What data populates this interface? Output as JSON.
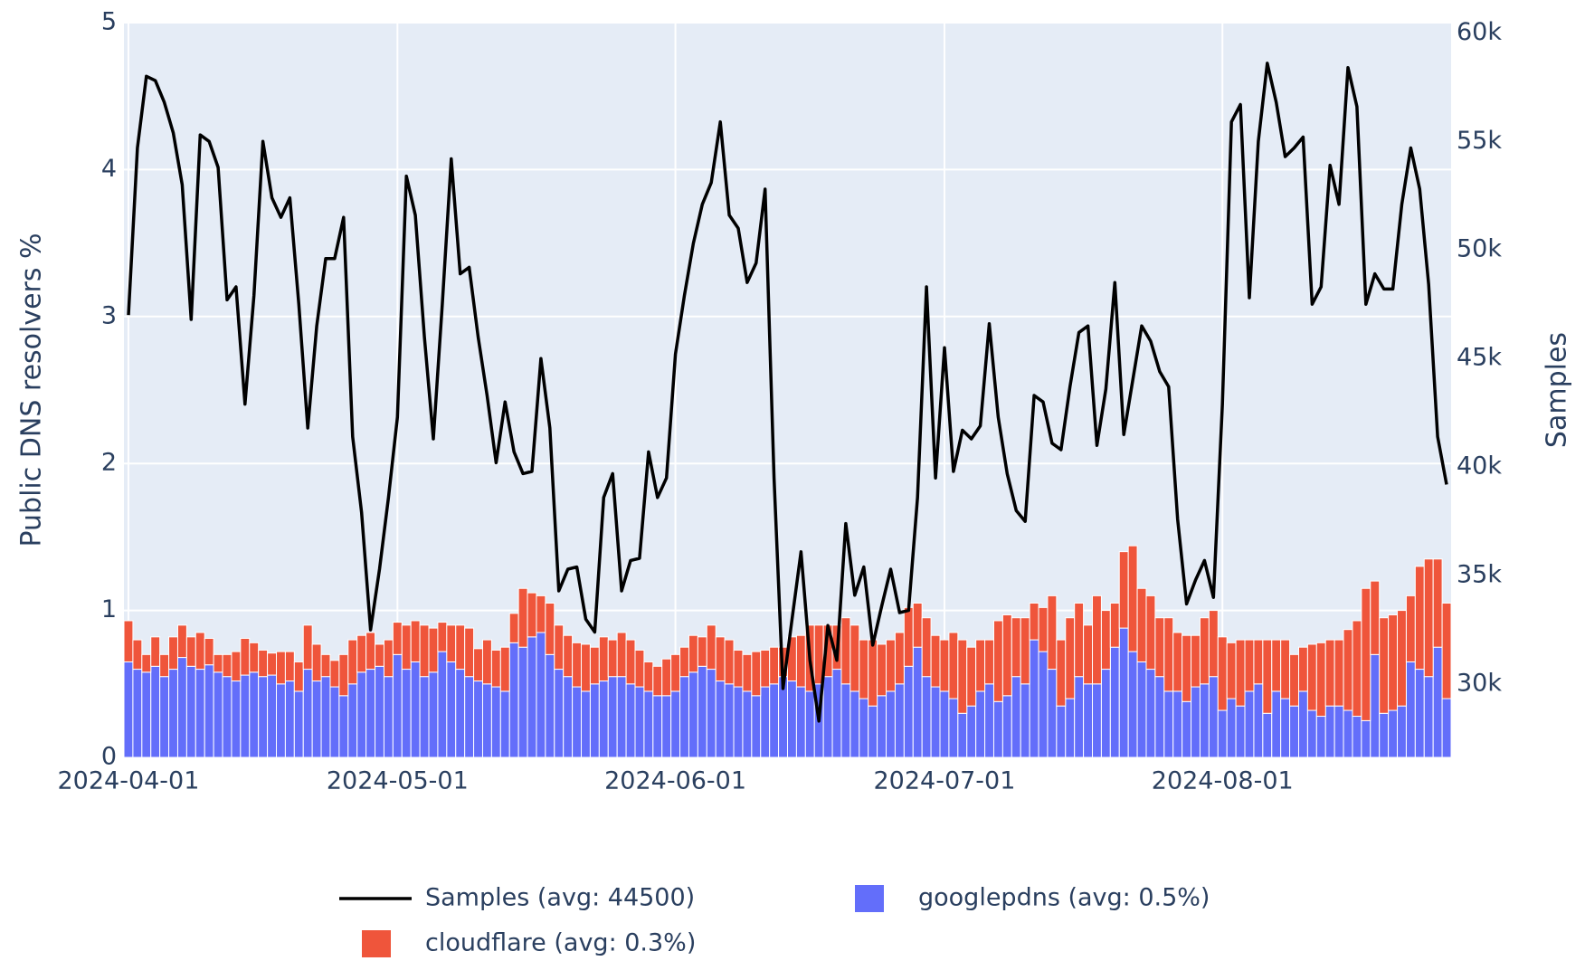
{
  "chart_data": {
    "type": "bar",
    "barmode": "stack",
    "y_label": "Public DNS resolvers %",
    "y2_label": "Samples",
    "legend": "bottom",
    "grid": true,
    "xlim": [
      "2024-03-31T12:00:00Z",
      "2024-08-26T12:00:00Z"
    ],
    "xticks": [
      "2024-04-01",
      "2024-05-01",
      "2024-06-01",
      "2024-07-01",
      "2024-08-01"
    ],
    "ylim": [
      0,
      5
    ],
    "yticks": [
      0,
      1,
      2,
      3,
      4,
      5
    ],
    "y2lim": [
      26630,
      60470
    ],
    "y2ticks": [
      {
        "value": 30000,
        "label": "30k"
      },
      {
        "value": 35000,
        "label": "35k"
      },
      {
        "value": 40000,
        "label": "40k"
      },
      {
        "value": 45000,
        "label": "45k"
      },
      {
        "value": 50000,
        "label": "50k"
      },
      {
        "value": 55000,
        "label": "55k"
      },
      {
        "value": 60000,
        "label": "60k"
      }
    ],
    "x": [
      "2024-04-01",
      "2024-04-02",
      "2024-04-03",
      "2024-04-04",
      "2024-04-05",
      "2024-04-06",
      "2024-04-07",
      "2024-04-08",
      "2024-04-09",
      "2024-04-10",
      "2024-04-11",
      "2024-04-12",
      "2024-04-13",
      "2024-04-14",
      "2024-04-15",
      "2024-04-16",
      "2024-04-17",
      "2024-04-18",
      "2024-04-19",
      "2024-04-20",
      "2024-04-21",
      "2024-04-22",
      "2024-04-23",
      "2024-04-24",
      "2024-04-25",
      "2024-04-26",
      "2024-04-27",
      "2024-04-28",
      "2024-04-29",
      "2024-04-30",
      "2024-05-01",
      "2024-05-02",
      "2024-05-03",
      "2024-05-04",
      "2024-05-05",
      "2024-05-06",
      "2024-05-07",
      "2024-05-08",
      "2024-05-09",
      "2024-05-10",
      "2024-05-11",
      "2024-05-12",
      "2024-05-13",
      "2024-05-14",
      "2024-05-15",
      "2024-05-16",
      "2024-05-17",
      "2024-05-18",
      "2024-05-19",
      "2024-05-20",
      "2024-05-21",
      "2024-05-22",
      "2024-05-23",
      "2024-05-24",
      "2024-05-25",
      "2024-05-26",
      "2024-05-27",
      "2024-05-28",
      "2024-05-29",
      "2024-05-30",
      "2024-05-31",
      "2024-06-01",
      "2024-06-02",
      "2024-06-03",
      "2024-06-04",
      "2024-06-05",
      "2024-06-06",
      "2024-06-07",
      "2024-06-08",
      "2024-06-09",
      "2024-06-10",
      "2024-06-11",
      "2024-06-12",
      "2024-06-13",
      "2024-06-14",
      "2024-06-15",
      "2024-06-16",
      "2024-06-17",
      "2024-06-18",
      "2024-06-19",
      "2024-06-20",
      "2024-06-21",
      "2024-06-22",
      "2024-06-23",
      "2024-06-24",
      "2024-06-25",
      "2024-06-26",
      "2024-06-27",
      "2024-06-28",
      "2024-06-29",
      "2024-06-30",
      "2024-07-01",
      "2024-07-02",
      "2024-07-03",
      "2024-07-04",
      "2024-07-05",
      "2024-07-06",
      "2024-07-07",
      "2024-07-08",
      "2024-07-09",
      "2024-07-10",
      "2024-07-11",
      "2024-07-12",
      "2024-07-13",
      "2024-07-14",
      "2024-07-15",
      "2024-07-16",
      "2024-07-17",
      "2024-07-18",
      "2024-07-19",
      "2024-07-20",
      "2024-07-21",
      "2024-07-22",
      "2024-07-23",
      "2024-07-24",
      "2024-07-25",
      "2024-07-26",
      "2024-07-27",
      "2024-07-28",
      "2024-07-29",
      "2024-07-30",
      "2024-07-31",
      "2024-08-01",
      "2024-08-02",
      "2024-08-03",
      "2024-08-04",
      "2024-08-05",
      "2024-08-06",
      "2024-08-07",
      "2024-08-08",
      "2024-08-09",
      "2024-08-10",
      "2024-08-11",
      "2024-08-12",
      "2024-08-13",
      "2024-08-14",
      "2024-08-15",
      "2024-08-16",
      "2024-08-17",
      "2024-08-18",
      "2024-08-19",
      "2024-08-20",
      "2024-08-21",
      "2024-08-22",
      "2024-08-23",
      "2024-08-24",
      "2024-08-25",
      "2024-08-26"
    ],
    "series": [
      {
        "name": "googlepdns (avg: 0.5%)",
        "type": "bar",
        "color": "#636efa",
        "values": [
          0.65,
          0.6,
          0.58,
          0.62,
          0.55,
          0.6,
          0.68,
          0.62,
          0.6,
          0.63,
          0.58,
          0.55,
          0.52,
          0.56,
          0.58,
          0.55,
          0.56,
          0.5,
          0.52,
          0.45,
          0.6,
          0.52,
          0.55,
          0.48,
          0.42,
          0.5,
          0.58,
          0.6,
          0.62,
          0.55,
          0.7,
          0.6,
          0.65,
          0.55,
          0.58,
          0.72,
          0.65,
          0.6,
          0.55,
          0.52,
          0.5,
          0.48,
          0.45,
          0.78,
          0.75,
          0.82,
          0.85,
          0.7,
          0.6,
          0.55,
          0.48,
          0.45,
          0.5,
          0.52,
          0.55,
          0.55,
          0.5,
          0.48,
          0.45,
          0.42,
          0.42,
          0.45,
          0.55,
          0.58,
          0.62,
          0.6,
          0.52,
          0.5,
          0.48,
          0.45,
          0.42,
          0.48,
          0.5,
          0.55,
          0.52,
          0.48,
          0.45,
          0.5,
          0.55,
          0.6,
          0.5,
          0.45,
          0.4,
          0.35,
          0.42,
          0.45,
          0.5,
          0.62,
          0.75,
          0.55,
          0.48,
          0.45,
          0.4,
          0.3,
          0.35,
          0.45,
          0.5,
          0.38,
          0.42,
          0.55,
          0.5,
          0.8,
          0.72,
          0.6,
          0.35,
          0.4,
          0.55,
          0.5,
          0.5,
          0.6,
          0.75,
          0.88,
          0.72,
          0.65,
          0.6,
          0.55,
          0.45,
          0.45,
          0.38,
          0.48,
          0.5,
          0.55,
          0.32,
          0.4,
          0.35,
          0.45,
          0.5,
          0.3,
          0.45,
          0.4,
          0.35,
          0.45,
          0.32,
          0.28,
          0.35,
          0.35,
          0.32,
          0.28,
          0.25,
          0.7,
          0.3,
          0.32,
          0.35,
          0.65,
          0.6,
          0.55,
          0.75,
          0.4
        ]
      },
      {
        "name": "cloudflare (avg: 0.3%)",
        "type": "bar",
        "color": "#ef553b",
        "values": [
          0.28,
          0.2,
          0.12,
          0.2,
          0.15,
          0.22,
          0.22,
          0.2,
          0.25,
          0.18,
          0.12,
          0.15,
          0.2,
          0.25,
          0.2,
          0.18,
          0.15,
          0.22,
          0.2,
          0.2,
          0.3,
          0.25,
          0.15,
          0.18,
          0.28,
          0.3,
          0.25,
          0.25,
          0.15,
          0.25,
          0.22,
          0.3,
          0.28,
          0.35,
          0.3,
          0.2,
          0.25,
          0.3,
          0.33,
          0.22,
          0.3,
          0.25,
          0.3,
          0.2,
          0.4,
          0.3,
          0.25,
          0.35,
          0.3,
          0.28,
          0.3,
          0.32,
          0.25,
          0.3,
          0.25,
          0.3,
          0.3,
          0.25,
          0.2,
          0.2,
          0.25,
          0.25,
          0.2,
          0.25,
          0.2,
          0.3,
          0.3,
          0.3,
          0.25,
          0.25,
          0.3,
          0.25,
          0.25,
          0.2,
          0.3,
          0.35,
          0.45,
          0.4,
          0.35,
          0.3,
          0.45,
          0.45,
          0.4,
          0.45,
          0.35,
          0.35,
          0.35,
          0.4,
          0.3,
          0.4,
          0.35,
          0.35,
          0.45,
          0.5,
          0.4,
          0.35,
          0.3,
          0.55,
          0.55,
          0.4,
          0.45,
          0.25,
          0.3,
          0.5,
          0.45,
          0.55,
          0.5,
          0.4,
          0.6,
          0.4,
          0.3,
          0.52,
          0.72,
          0.5,
          0.5,
          0.4,
          0.5,
          0.4,
          0.45,
          0.35,
          0.45,
          0.45,
          0.5,
          0.38,
          0.45,
          0.35,
          0.3,
          0.5,
          0.35,
          0.4,
          0.35,
          0.3,
          0.45,
          0.5,
          0.45,
          0.45,
          0.55,
          0.65,
          0.9,
          0.5,
          0.65,
          0.65,
          0.65,
          0.45,
          0.7,
          0.8,
          0.6,
          0.65
        ]
      },
      {
        "name": "Samples (avg: 44500)",
        "type": "line",
        "axis": "y2",
        "color": "#000000",
        "values": [
          47000,
          54700,
          58000,
          57800,
          56800,
          55400,
          53000,
          46800,
          55300,
          55000,
          53800,
          47700,
          48300,
          42900,
          47900,
          55000,
          52400,
          51500,
          52400,
          47500,
          41800,
          46500,
          49600,
          49600,
          51500,
          41400,
          37900,
          32500,
          35300,
          38600,
          42300,
          53400,
          51600,
          46000,
          41300,
          47500,
          54200,
          48900,
          49200,
          46000,
          43300,
          40200,
          43000,
          40700,
          39700,
          39800,
          45000,
          41800,
          34300,
          35300,
          35400,
          33000,
          32400,
          38600,
          39700,
          34300,
          35700,
          35800,
          40700,
          38600,
          39500,
          45200,
          47900,
          50300,
          52100,
          53100,
          55900,
          51600,
          51000,
          48500,
          49400,
          52800,
          39500,
          29800,
          33000,
          36100,
          31100,
          28300,
          32700,
          31100,
          37400,
          34100,
          35400,
          31800,
          33600,
          35300,
          33300,
          33400,
          38600,
          48300,
          39500,
          45500,
          39800,
          41700,
          41300,
          41900,
          46600,
          42300,
          39700,
          38000,
          37500,
          43300,
          43000,
          41100,
          40800,
          43700,
          46200,
          46500,
          41000,
          43600,
          48500,
          41500,
          44000,
          46500,
          45800,
          44400,
          43700,
          37600,
          33700,
          34800,
          35700,
          34000,
          42900,
          55900,
          56700,
          47800,
          55000,
          58600,
          56800,
          54300,
          54700,
          55200,
          47500,
          48300,
          53900,
          52100,
          58400,
          56600,
          47500,
          48900,
          48200,
          48200,
          52100,
          54700,
          52800,
          48400,
          41400,
          39200
        ]
      }
    ]
  }
}
